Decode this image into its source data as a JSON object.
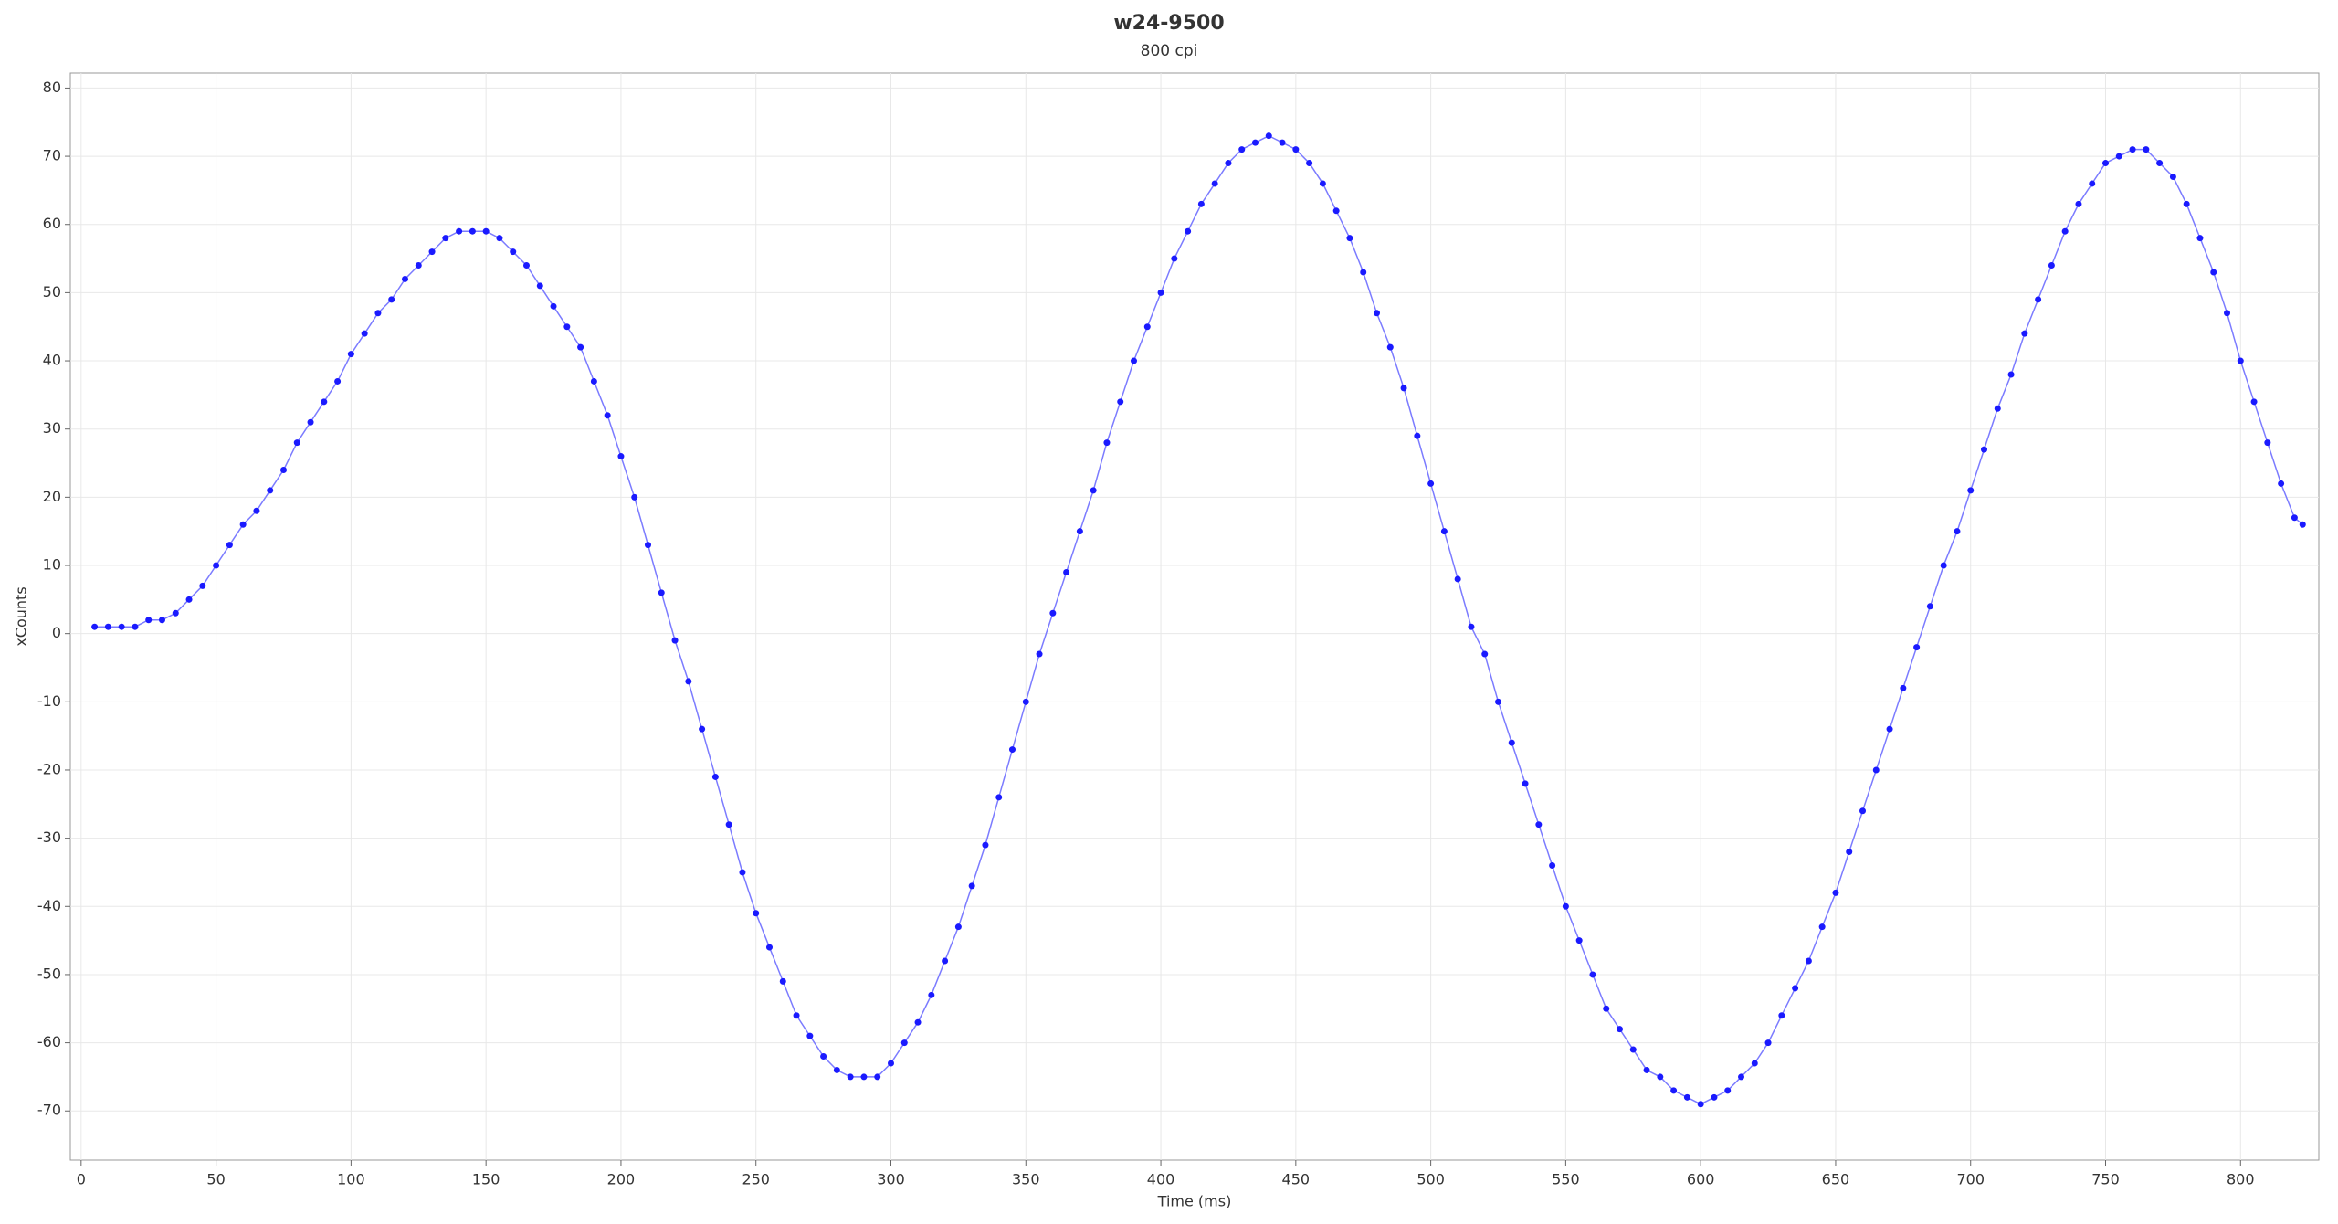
{
  "chart_data": {
    "type": "scatter",
    "title": "w24-9500",
    "subtitle": "800 cpi",
    "x_label": "Time (ms)",
    "y_label": "xCounts",
    "xlim": [
      -4,
      829
    ],
    "ylim": [
      -77.2,
      82.2
    ],
    "xticks": [
      0,
      50,
      100,
      150,
      200,
      250,
      300,
      350,
      400,
      450,
      500,
      550,
      600,
      650,
      700,
      750,
      800
    ],
    "yticks": [
      -70,
      -60,
      -50,
      -40,
      -30,
      -20,
      -10,
      0,
      10,
      20,
      30,
      40,
      50,
      60,
      70,
      80
    ],
    "grid": true,
    "series": [
      {
        "name": "xCounts",
        "color": "#1a1aff",
        "line_color": "#7b7bff",
        "x": [
          5,
          10,
          15,
          20,
          25,
          30,
          35,
          40,
          45,
          50,
          55,
          60,
          65,
          70,
          75,
          80,
          85,
          90,
          95,
          100,
          105,
          110,
          115,
          120,
          125,
          130,
          135,
          140,
          145,
          150,
          155,
          160,
          165,
          170,
          175,
          180,
          185,
          190,
          195,
          200,
          205,
          210,
          215,
          220,
          225,
          230,
          235,
          240,
          245,
          250,
          255,
          260,
          265,
          270,
          275,
          280,
          285,
          290,
          295,
          300,
          305,
          310,
          315,
          320,
          325,
          330,
          335,
          340,
          345,
          350,
          355,
          360,
          365,
          370,
          375,
          380,
          385,
          390,
          395,
          400,
          405,
          410,
          415,
          420,
          425,
          430,
          435,
          440,
          445,
          450,
          455,
          460,
          465,
          470,
          475,
          480,
          485,
          490,
          495,
          500,
          505,
          510,
          515,
          520,
          525,
          530,
          535,
          540,
          545,
          550,
          555,
          560,
          565,
          570,
          575,
          580,
          585,
          590,
          595,
          600,
          605,
          610,
          615,
          620,
          625,
          630,
          635,
          640,
          645,
          650,
          655,
          660,
          665,
          670,
          675,
          680,
          685,
          690,
          695,
          700,
          705,
          710,
          715,
          720,
          725,
          730,
          735,
          740,
          745,
          750,
          755,
          760,
          765,
          770,
          775,
          780,
          785,
          790,
          795,
          800,
          805,
          810,
          815,
          820,
          823
        ],
        "values": [
          1,
          1,
          1,
          1,
          2,
          2,
          3,
          5,
          7,
          10,
          13,
          16,
          18,
          21,
          24,
          28,
          31,
          34,
          37,
          41,
          44,
          47,
          49,
          52,
          54,
          56,
          58,
          59,
          59,
          59,
          58,
          56,
          54,
          51,
          48,
          45,
          42,
          37,
          32,
          26,
          20,
          13,
          6,
          -1,
          -7,
          -14,
          -21,
          -28,
          -35,
          -41,
          -46,
          -51,
          -56,
          -59,
          -62,
          -64,
          -65,
          -65,
          -65,
          -63,
          -60,
          -57,
          -53,
          -48,
          -43,
          -37,
          -31,
          -24,
          -17,
          -10,
          -3,
          3,
          9,
          15,
          21,
          28,
          34,
          40,
          45,
          50,
          55,
          59,
          63,
          66,
          69,
          71,
          72,
          73,
          72,
          71,
          69,
          66,
          62,
          58,
          53,
          47,
          42,
          36,
          29,
          22,
          15,
          8,
          1,
          -3,
          -10,
          -16,
          -22,
          -28,
          -34,
          -40,
          -45,
          -50,
          -55,
          -58,
          -61,
          -64,
          -65,
          -67,
          -68,
          -69,
          -68,
          -67,
          -65,
          -63,
          -60,
          -56,
          -52,
          -48,
          -43,
          -38,
          -32,
          -26,
          -20,
          -14,
          -8,
          -2,
          4,
          10,
          15,
          21,
          27,
          33,
          38,
          44,
          49,
          54,
          59,
          63,
          66,
          69,
          70,
          71,
          71,
          69,
          67,
          63,
          58,
          53,
          47,
          40,
          34,
          28,
          22,
          17,
          16
        ]
      }
    ]
  }
}
